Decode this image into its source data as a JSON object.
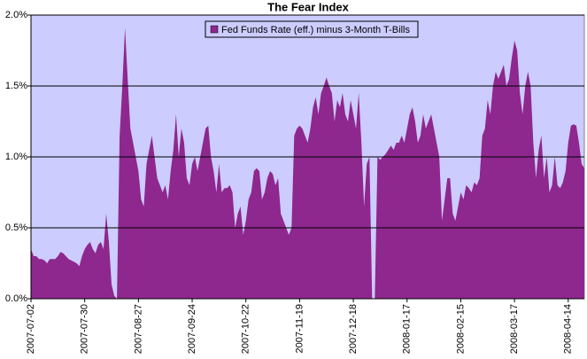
{
  "chart_data": {
    "type": "area",
    "title": "The Fear Index",
    "categories": [
      "2007-07-02",
      null,
      null,
      null,
      null,
      null,
      null,
      null,
      null,
      null,
      null,
      null,
      null,
      null,
      null,
      null,
      null,
      null,
      null,
      null,
      "2007-07-30",
      null,
      null,
      null,
      null,
      null,
      null,
      null,
      null,
      null,
      null,
      null,
      null,
      null,
      null,
      null,
      null,
      null,
      null,
      null,
      "2007-08-27",
      null,
      null,
      null,
      null,
      null,
      null,
      null,
      null,
      null,
      null,
      null,
      null,
      null,
      null,
      null,
      null,
      null,
      null,
      null,
      "2007-09-24",
      null,
      null,
      null,
      null,
      null,
      null,
      null,
      null,
      null,
      null,
      null,
      null,
      null,
      null,
      null,
      null,
      null,
      null,
      null,
      "2007-10-22",
      null,
      null,
      null,
      null,
      null,
      null,
      null,
      null,
      null,
      null,
      null,
      null,
      null,
      null,
      null,
      null,
      null,
      null,
      null,
      "2007-11-19",
      null,
      null,
      null,
      null,
      null,
      null,
      null,
      null,
      null,
      null,
      null,
      null,
      null,
      null,
      null,
      null,
      null,
      null,
      null,
      "2007-12-18",
      null,
      null,
      null,
      null,
      null,
      null,
      null,
      null,
      null,
      null,
      null,
      null,
      null,
      null,
      null,
      null,
      null,
      null,
      null,
      "2008-01-17",
      null,
      null,
      null,
      null,
      null,
      null,
      null,
      null,
      null,
      null,
      null,
      null,
      null,
      null,
      null,
      null,
      null,
      null,
      null,
      "2008-02-15",
      null,
      null,
      null,
      null,
      null,
      null,
      null,
      null,
      null,
      null,
      null,
      null,
      null,
      null,
      null,
      null,
      null,
      null,
      null,
      "2008-03-17",
      null,
      null,
      null,
      null,
      null,
      null,
      null,
      null,
      null,
      null,
      null,
      null,
      null,
      null,
      null,
      null,
      null,
      null,
      null,
      "2008-04-14",
      null,
      null,
      null,
      null,
      null,
      null
    ],
    "series": [
      {
        "name": "Fed Funds Rate (eff.) minus 3-Month T-Bills",
        "color": "#8e278e",
        "values": [
          0.35,
          0.3,
          0.3,
          0.28,
          0.28,
          0.27,
          0.25,
          0.28,
          0.28,
          0.28,
          0.3,
          0.33,
          0.32,
          0.3,
          0.28,
          0.27,
          0.26,
          0.25,
          0.23,
          0.3,
          0.35,
          0.38,
          0.4,
          0.35,
          0.32,
          0.38,
          0.4,
          0.35,
          0.6,
          0.4,
          0.1,
          0.02,
          0.0,
          1.15,
          1.5,
          1.91,
          1.55,
          1.2,
          1.1,
          1.0,
          0.9,
          0.7,
          0.65,
          0.95,
          1.05,
          1.15,
          1.0,
          0.85,
          0.8,
          0.75,
          0.8,
          0.7,
          0.9,
          1.05,
          1.3,
          1.0,
          1.2,
          1.1,
          0.85,
          0.8,
          0.95,
          1.0,
          0.9,
          1.0,
          1.1,
          1.2,
          1.22,
          1.0,
          0.9,
          0.75,
          0.95,
          0.75,
          0.78,
          0.78,
          0.8,
          0.75,
          0.5,
          0.6,
          0.65,
          0.45,
          0.55,
          0.7,
          0.75,
          0.9,
          0.92,
          0.9,
          0.7,
          0.75,
          0.85,
          0.9,
          0.88,
          0.8,
          0.85,
          0.6,
          0.55,
          0.5,
          0.45,
          0.5,
          1.15,
          1.2,
          1.22,
          1.2,
          1.15,
          1.1,
          1.2,
          1.35,
          1.42,
          1.3,
          1.45,
          1.5,
          1.56,
          1.5,
          1.45,
          1.25,
          1.4,
          1.35,
          1.45,
          1.3,
          1.25,
          1.4,
          1.3,
          1.2,
          1.45,
          1.1,
          0.65,
          0.95,
          1.0,
          0.0,
          0.0,
          1.0,
          0.98,
          1.0,
          1.02,
          1.05,
          1.08,
          1.05,
          1.1,
          1.1,
          1.15,
          1.1,
          1.2,
          1.3,
          1.35,
          1.25,
          1.1,
          1.15,
          1.3,
          1.2,
          1.25,
          1.3,
          1.2,
          1.1,
          1.0,
          0.55,
          0.7,
          0.85,
          0.85,
          0.6,
          0.55,
          0.65,
          0.75,
          0.7,
          0.8,
          0.78,
          0.75,
          0.82,
          0.8,
          0.85,
          1.15,
          1.2,
          1.4,
          1.3,
          1.5,
          1.6,
          1.55,
          1.6,
          1.65,
          1.5,
          1.55,
          1.7,
          1.82,
          1.75,
          1.45,
          1.3,
          1.5,
          1.6,
          1.5,
          1.1,
          0.85,
          1.05,
          1.15,
          0.85,
          1.0,
          0.75,
          0.8,
          1.0,
          0.8,
          0.78,
          0.82,
          0.9,
          1.1,
          1.22,
          1.23,
          1.22,
          1.1,
          0.95,
          0.92
        ]
      }
    ],
    "ylim": [
      0,
      2.0
    ],
    "yticks": [
      {
        "value": 0,
        "label": "0.0%"
      },
      {
        "value": 0.5,
        "label": "0.5%"
      },
      {
        "value": 1.0,
        "label": "1.0%"
      },
      {
        "value": 1.5,
        "label": "1.5%"
      },
      {
        "value": 2.0,
        "label": "2.0%"
      }
    ],
    "grid": true,
    "legend": "top",
    "background": "#ccccff"
  }
}
